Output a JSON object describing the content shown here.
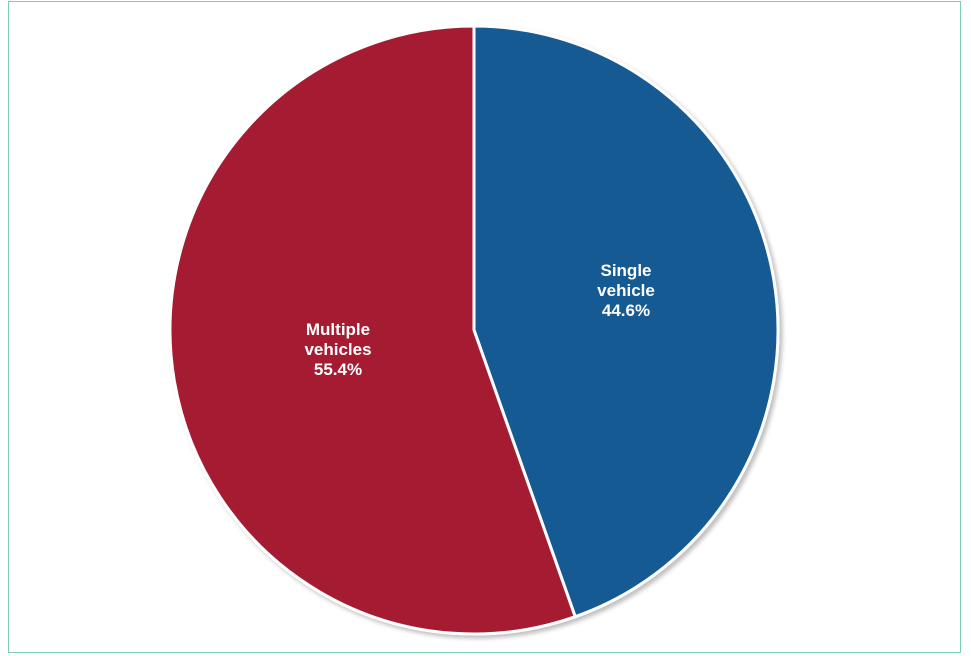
{
  "chart_data": {
    "type": "pie",
    "slices": [
      {
        "label_lines": [
          "Single",
          "vehicle"
        ],
        "value": 44.6,
        "value_label": "44.6%",
        "color": "#135a93"
      },
      {
        "label_lines": [
          "Multiple",
          "vehicles"
        ],
        "value": 55.4,
        "value_label": "55.4%",
        "color": "#a51c31"
      }
    ],
    "start_angle_deg": 0,
    "direction": "clockwise",
    "separator_color": "#ffffff",
    "legend": "none"
  },
  "frame_color": "#7ecdb9"
}
